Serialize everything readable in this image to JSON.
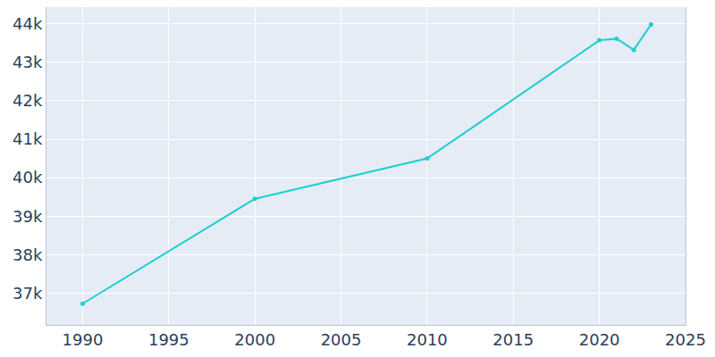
{
  "chart_data": {
    "type": "line",
    "x": [
      1990,
      2000,
      2010,
      2020,
      2021,
      2022,
      2023
    ],
    "values": [
      36730,
      39455,
      40500,
      43570,
      43610,
      43320,
      43980
    ],
    "color": "#1ccfcf",
    "marker": "circle",
    "xlim": [
      1987.9,
      2025
    ],
    "xticks": [
      1990,
      1995,
      2000,
      2005,
      2010,
      2015,
      2020,
      2025
    ],
    "ylim": [
      36180,
      44430
    ],
    "yticks": [
      {
        "value": 37000,
        "label": "37k"
      },
      {
        "value": 38000,
        "label": "38k"
      },
      {
        "value": 39000,
        "label": "39k"
      },
      {
        "value": 40000,
        "label": "40k"
      },
      {
        "value": 41000,
        "label": "41k"
      },
      {
        "value": 42000,
        "label": "42k"
      },
      {
        "value": 43000,
        "label": "43k"
      },
      {
        "value": 44000,
        "label": "44k"
      }
    ],
    "grid": true
  }
}
